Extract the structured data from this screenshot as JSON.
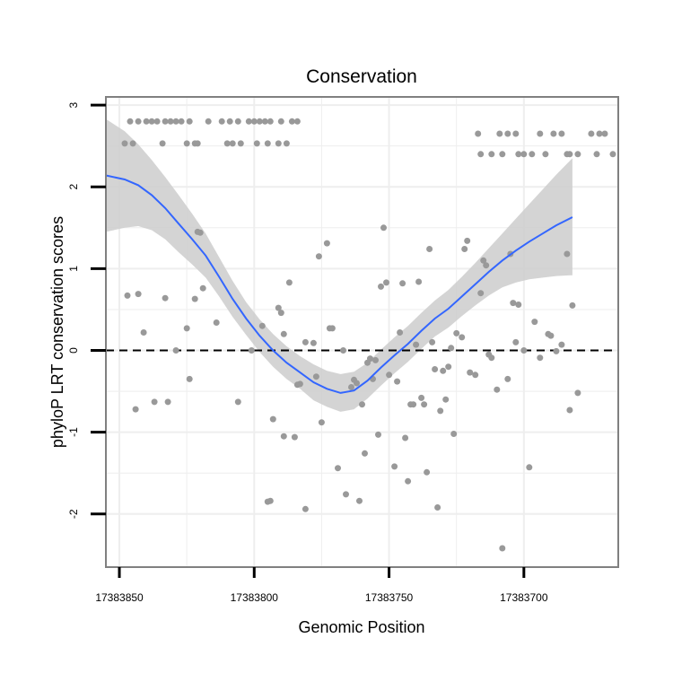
{
  "chart_data": {
    "type": "scatter",
    "title": "Conservation",
    "xlabel": "Genomic Position",
    "ylabel": "phyloP LRT conservation scores",
    "xlim": [
      17383855,
      17383665
    ],
    "x_reversed": true,
    "ylim": [
      -2.65,
      3.1
    ],
    "x_ticks": [
      17383850,
      17383800,
      17383750,
      17383700
    ],
    "x_tick_labels": [
      "17383850",
      "17383800",
      "17383750",
      "17383700"
    ],
    "y_ticks": [
      -2,
      -1,
      0,
      1,
      2,
      3
    ],
    "y_tick_labels": [
      "-2",
      "-1",
      "0",
      "1",
      "2",
      "3"
    ],
    "grid": true,
    "reference_line": {
      "y": 0,
      "style": "dashed",
      "color": "#000000"
    },
    "colors": {
      "points": "#999999",
      "smooth_line": "#3366FF",
      "confidence_band": "#CCCCCC",
      "panel_border": "#808080",
      "grid": "#EEEEEE"
    },
    "points": [
      [
        17383848,
        2.53
      ],
      [
        17383846,
        2.8
      ],
      [
        17383845,
        2.53
      ],
      [
        17383843,
        2.8
      ],
      [
        17383840,
        2.8
      ],
      [
        17383838,
        2.8
      ],
      [
        17383836,
        2.8
      ],
      [
        17383834,
        2.53
      ],
      [
        17383833,
        2.8
      ],
      [
        17383831,
        2.8
      ],
      [
        17383829,
        2.8
      ],
      [
        17383827,
        2.8
      ],
      [
        17383825,
        2.53
      ],
      [
        17383824,
        2.8
      ],
      [
        17383822,
        2.53
      ],
      [
        17383821,
        2.53
      ],
      [
        17383817,
        2.8
      ],
      [
        17383812,
        2.8
      ],
      [
        17383810,
        2.53
      ],
      [
        17383809,
        2.8
      ],
      [
        17383808,
        2.53
      ],
      [
        17383806,
        2.8
      ],
      [
        17383805,
        2.53
      ],
      [
        17383802,
        2.8
      ],
      [
        17383800,
        2.8
      ],
      [
        17383799,
        2.53
      ],
      [
        17383798,
        2.8
      ],
      [
        17383796,
        2.8
      ],
      [
        17383795,
        2.53
      ],
      [
        17383794,
        2.8
      ],
      [
        17383791,
        2.53
      ],
      [
        17383790,
        2.8
      ],
      [
        17383788,
        2.53
      ],
      [
        17383786,
        2.8
      ],
      [
        17383784,
        2.8
      ],
      [
        17383717,
        2.65
      ],
      [
        17383716,
        2.4
      ],
      [
        17383712,
        2.4
      ],
      [
        17383709,
        2.65
      ],
      [
        17383708,
        2.4
      ],
      [
        17383706,
        2.65
      ],
      [
        17383703,
        2.65
      ],
      [
        17383702,
        2.4
      ],
      [
        17383700,
        2.4
      ],
      [
        17383697,
        2.4
      ],
      [
        17383694,
        2.65
      ],
      [
        17383692,
        2.4
      ],
      [
        17383689,
        2.65
      ],
      [
        17383686,
        2.65
      ],
      [
        17383684,
        2.4
      ],
      [
        17383683,
        2.4
      ],
      [
        17383680,
        2.4
      ],
      [
        17383675,
        2.65
      ],
      [
        17383673,
        2.4
      ],
      [
        17383672,
        2.65
      ],
      [
        17383670,
        2.65
      ],
      [
        17383667,
        2.4
      ],
      [
        17383847,
        0.67
      ],
      [
        17383844,
        -0.72
      ],
      [
        17383843,
        0.69
      ],
      [
        17383841,
        0.22
      ],
      [
        17383837,
        -0.63
      ],
      [
        17383833,
        0.64
      ],
      [
        17383832,
        -0.63
      ],
      [
        17383829,
        0.0
      ],
      [
        17383825,
        0.27
      ],
      [
        17383824,
        -0.35
      ],
      [
        17383822,
        0.63
      ],
      [
        17383821,
        1.45
      ],
      [
        17383820,
        1.44
      ],
      [
        17383819,
        0.76
      ],
      [
        17383814,
        0.34
      ],
      [
        17383806,
        -0.63
      ],
      [
        17383801,
        0.0
      ],
      [
        17383797,
        0.3
      ],
      [
        17383795,
        -1.85
      ],
      [
        17383794,
        -1.84
      ],
      [
        17383793,
        -0.84
      ],
      [
        17383791,
        0.52
      ],
      [
        17383790,
        0.46
      ],
      [
        17383789,
        0.2
      ],
      [
        17383789,
        -1.05
      ],
      [
        17383787,
        0.83
      ],
      [
        17383785,
        -1.06
      ],
      [
        17383784,
        -0.42
      ],
      [
        17383783,
        -0.41
      ],
      [
        17383781,
        -1.94
      ],
      [
        17383781,
        0.1
      ],
      [
        17383778,
        0.09
      ],
      [
        17383777,
        -0.32
      ],
      [
        17383776,
        1.15
      ],
      [
        17383775,
        -0.88
      ],
      [
        17383773,
        1.31
      ],
      [
        17383772,
        0.27
      ],
      [
        17383771,
        0.27
      ],
      [
        17383769,
        -1.44
      ],
      [
        17383767,
        0.0
      ],
      [
        17383766,
        -1.76
      ],
      [
        17383764,
        -0.45
      ],
      [
        17383763,
        -0.36
      ],
      [
        17383762,
        -0.4
      ],
      [
        17383761,
        -1.84
      ],
      [
        17383760,
        -0.66
      ],
      [
        17383759,
        -1.26
      ],
      [
        17383758,
        -0.15
      ],
      [
        17383757,
        -0.1
      ],
      [
        17383756,
        -0.35
      ],
      [
        17383755,
        -0.12
      ],
      [
        17383754,
        -1.03
      ],
      [
        17383753,
        0.78
      ],
      [
        17383752,
        1.5
      ],
      [
        17383751,
        0.83
      ],
      [
        17383750,
        -0.3
      ],
      [
        17383748,
        -1.42
      ],
      [
        17383747,
        -0.38
      ],
      [
        17383746,
        0.22
      ],
      [
        17383745,
        0.82
      ],
      [
        17383744,
        -1.07
      ],
      [
        17383743,
        -1.6
      ],
      [
        17383742,
        -0.66
      ],
      [
        17383741,
        -0.66
      ],
      [
        17383740,
        0.07
      ],
      [
        17383739,
        0.84
      ],
      [
        17383738,
        -0.58
      ],
      [
        17383737,
        -0.66
      ],
      [
        17383736,
        -1.49
      ],
      [
        17383735,
        1.24
      ],
      [
        17383734,
        0.1
      ],
      [
        17383733,
        -0.23
      ],
      [
        17383732,
        -1.92
      ],
      [
        17383731,
        -0.74
      ],
      [
        17383730,
        -0.25
      ],
      [
        17383729,
        -0.6
      ],
      [
        17383728,
        -0.2
      ],
      [
        17383727,
        0.03
      ],
      [
        17383726,
        -1.02
      ],
      [
        17383725,
        0.21
      ],
      [
        17383723,
        0.16
      ],
      [
        17383722,
        1.24
      ],
      [
        17383721,
        1.34
      ],
      [
        17383720,
        -0.27
      ],
      [
        17383718,
        -0.3
      ],
      [
        17383716,
        0.7
      ],
      [
        17383715,
        1.1
      ],
      [
        17383714,
        1.04
      ],
      [
        17383713,
        -0.05
      ],
      [
        17383712,
        -0.09
      ],
      [
        17383710,
        -0.48
      ],
      [
        17383708,
        -2.42
      ],
      [
        17383706,
        -0.35
      ],
      [
        17383705,
        1.18
      ],
      [
        17383704,
        0.58
      ],
      [
        17383703,
        0.1
      ],
      [
        17383702,
        0.56
      ],
      [
        17383700,
        0.0
      ],
      [
        17383698,
        -1.43
      ],
      [
        17383696,
        0.35
      ],
      [
        17383694,
        -0.09
      ],
      [
        17383691,
        0.2
      ],
      [
        17383690,
        0.18
      ],
      [
        17383688,
        -0.01
      ],
      [
        17383686,
        0.07
      ],
      [
        17383684,
        1.18
      ],
      [
        17383683,
        -0.73
      ],
      [
        17383682,
        0.55
      ],
      [
        17383680,
        -0.52
      ]
    ],
    "smooth_line": [
      [
        17383855,
        2.14
      ],
      [
        17383848,
        2.09
      ],
      [
        17383843,
        2.02
      ],
      [
        17383838,
        1.9
      ],
      [
        17383833,
        1.74
      ],
      [
        17383828,
        1.55
      ],
      [
        17383823,
        1.36
      ],
      [
        17383818,
        1.16
      ],
      [
        17383813,
        0.9
      ],
      [
        17383808,
        0.63
      ],
      [
        17383803,
        0.39
      ],
      [
        17383798,
        0.18
      ],
      [
        17383793,
        0.0
      ],
      [
        17383788,
        -0.15
      ],
      [
        17383783,
        -0.27
      ],
      [
        17383778,
        -0.39
      ],
      [
        17383773,
        -0.47
      ],
      [
        17383768,
        -0.52
      ],
      [
        17383763,
        -0.49
      ],
      [
        17383758,
        -0.37
      ],
      [
        17383753,
        -0.21
      ],
      [
        17383748,
        -0.06
      ],
      [
        17383743,
        0.08
      ],
      [
        17383738,
        0.24
      ],
      [
        17383733,
        0.39
      ],
      [
        17383728,
        0.51
      ],
      [
        17383723,
        0.66
      ],
      [
        17383718,
        0.81
      ],
      [
        17383713,
        0.96
      ],
      [
        17383708,
        1.1
      ],
      [
        17383703,
        1.22
      ],
      [
        17383698,
        1.33
      ],
      [
        17383693,
        1.43
      ],
      [
        17383688,
        1.53
      ],
      [
        17383682,
        1.63
      ]
    ],
    "confidence_upper": [
      [
        17383855,
        2.83
      ],
      [
        17383848,
        2.68
      ],
      [
        17383843,
        2.52
      ],
      [
        17383838,
        2.33
      ],
      [
        17383833,
        2.12
      ],
      [
        17383828,
        1.9
      ],
      [
        17383823,
        1.67
      ],
      [
        17383818,
        1.43
      ],
      [
        17383813,
        1.14
      ],
      [
        17383808,
        0.85
      ],
      [
        17383803,
        0.59
      ],
      [
        17383798,
        0.38
      ],
      [
        17383793,
        0.2
      ],
      [
        17383788,
        0.05
      ],
      [
        17383783,
        -0.07
      ],
      [
        17383778,
        -0.17
      ],
      [
        17383773,
        -0.25
      ],
      [
        17383768,
        -0.29
      ],
      [
        17383763,
        -0.26
      ],
      [
        17383758,
        -0.15
      ],
      [
        17383753,
        0.01
      ],
      [
        17383748,
        0.16
      ],
      [
        17383743,
        0.3
      ],
      [
        17383738,
        0.46
      ],
      [
        17383733,
        0.61
      ],
      [
        17383728,
        0.74
      ],
      [
        17383723,
        0.9
      ],
      [
        17383718,
        1.07
      ],
      [
        17383713,
        1.25
      ],
      [
        17383708,
        1.43
      ],
      [
        17383703,
        1.61
      ],
      [
        17383698,
        1.79
      ],
      [
        17383693,
        1.97
      ],
      [
        17383688,
        2.15
      ],
      [
        17383682,
        2.35
      ]
    ],
    "confidence_lower": [
      [
        17383855,
        1.45
      ],
      [
        17383848,
        1.5
      ],
      [
        17383843,
        1.52
      ],
      [
        17383838,
        1.47
      ],
      [
        17383833,
        1.36
      ],
      [
        17383828,
        1.2
      ],
      [
        17383823,
        1.05
      ],
      [
        17383818,
        0.89
      ],
      [
        17383813,
        0.66
      ],
      [
        17383808,
        0.41
      ],
      [
        17383803,
        0.19
      ],
      [
        17383798,
        -0.02
      ],
      [
        17383793,
        -0.2
      ],
      [
        17383788,
        -0.35
      ],
      [
        17383783,
        -0.47
      ],
      [
        17383778,
        -0.61
      ],
      [
        17383773,
        -0.69
      ],
      [
        17383768,
        -0.75
      ],
      [
        17383763,
        -0.72
      ],
      [
        17383758,
        -0.59
      ],
      [
        17383753,
        -0.43
      ],
      [
        17383748,
        -0.28
      ],
      [
        17383743,
        -0.14
      ],
      [
        17383738,
        0.02
      ],
      [
        17383733,
        0.17
      ],
      [
        17383728,
        0.28
      ],
      [
        17383723,
        0.42
      ],
      [
        17383718,
        0.55
      ],
      [
        17383713,
        0.67
      ],
      [
        17383708,
        0.77
      ],
      [
        17383703,
        0.83
      ],
      [
        17383698,
        0.87
      ],
      [
        17383693,
        0.89
      ],
      [
        17383688,
        0.91
      ],
      [
        17383682,
        0.92
      ]
    ]
  }
}
